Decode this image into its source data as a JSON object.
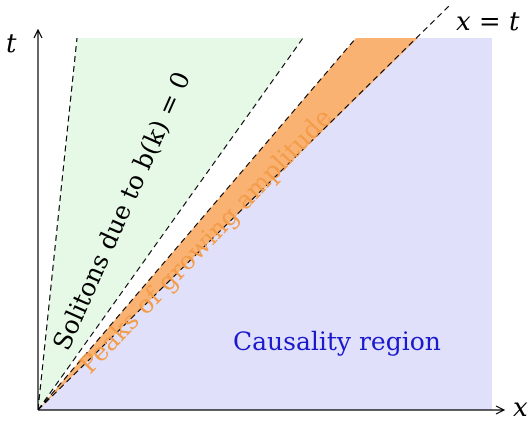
{
  "axes": {
    "x_label": "x",
    "t_label": "t"
  },
  "lines": {
    "diagonal_label": "x = t"
  },
  "regions": {
    "solitons": {
      "label": "Solitons due to b(k) = 0",
      "color": "#e6f9e6"
    },
    "peaks": {
      "label": "Peaks of growing amplitude",
      "color": "#f9b272",
      "label_color": "#f39c4a"
    },
    "causality": {
      "label": "Causality region",
      "color": "#e0e0fa",
      "label_color": "#1a1acc"
    }
  }
}
